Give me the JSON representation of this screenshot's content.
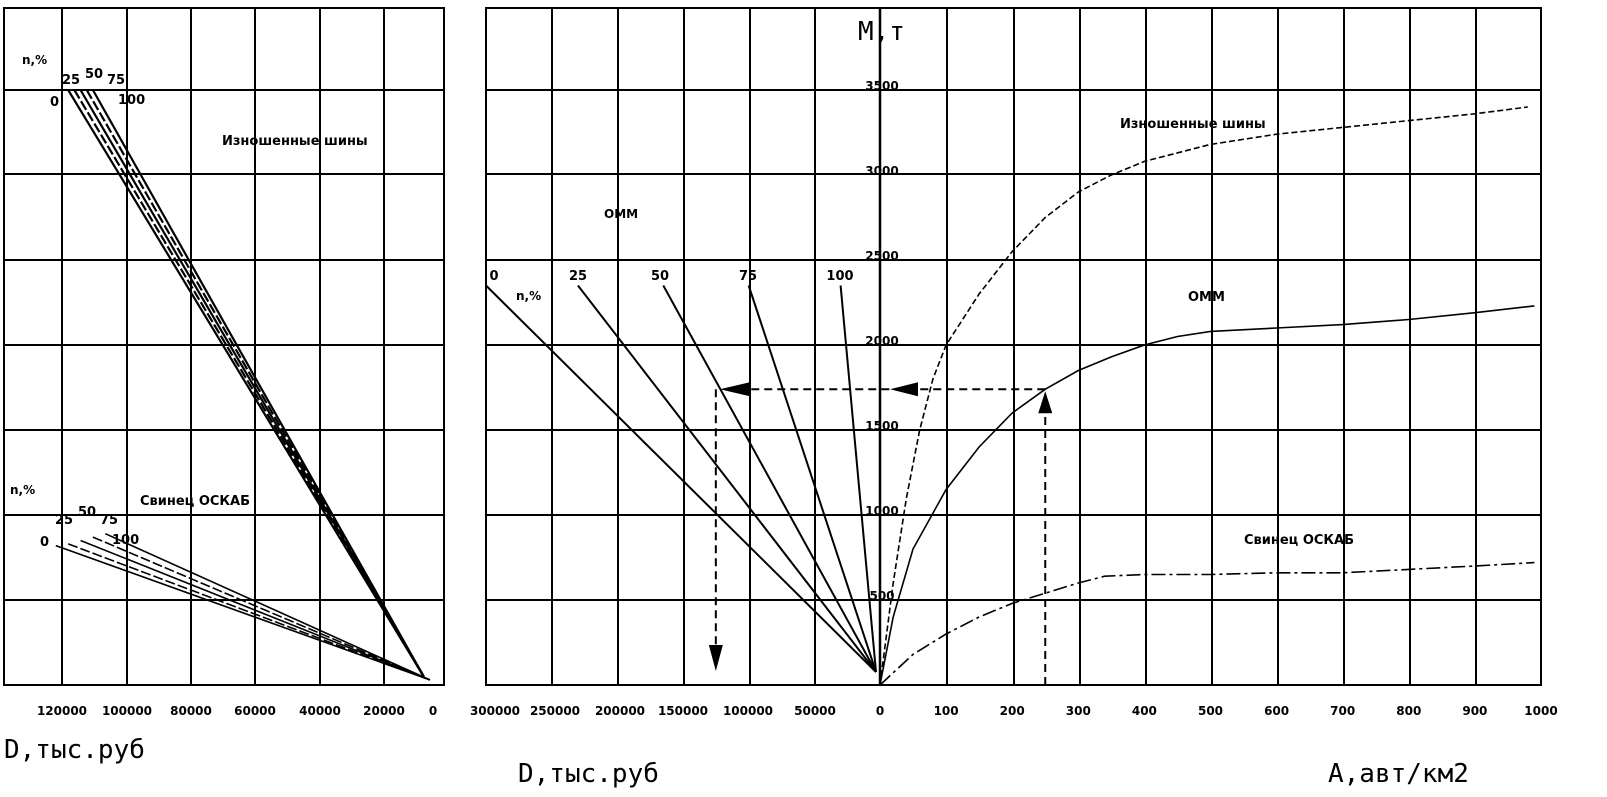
{
  "chart_data": [
    {
      "type": "line",
      "panel": "left",
      "xlabel": "D,тыс.руб",
      "x_ticks": [
        "120000",
        "100000",
        "80000",
        "60000",
        "40000",
        "20000",
        "0"
      ],
      "groups": [
        {
          "name": "Изношенные шины",
          "n_label": "n,%",
          "n_values": [
            "0",
            "25",
            "50",
            "75",
            "100"
          ],
          "lines": [
            {
              "n": "0",
              "x": [
                118000,
                3000
              ],
              "y": [
                3500,
                50
              ]
            },
            {
              "n": "25",
              "x": [
                116000,
                3000
              ],
              "y": [
                3500,
                50
              ]
            },
            {
              "n": "50",
              "x": [
                114000,
                3000
              ],
              "y": [
                3500,
                50
              ]
            },
            {
              "n": "75",
              "x": [
                112000,
                3000
              ],
              "y": [
                3500,
                50
              ]
            },
            {
              "n": "100",
              "x": [
                110000,
                3000
              ],
              "y": [
                3500,
                50
              ]
            }
          ]
        },
        {
          "name": "Свинец ОСКАБ",
          "n_label": "n,%",
          "n_values": [
            "0",
            "25",
            "50",
            "75",
            "100"
          ],
          "lines": [
            {
              "n": "0",
              "x": [
                122000,
                1000
              ],
              "y": [
                820,
                30
              ]
            },
            {
              "n": "25",
              "x": [
                118000,
                1000
              ],
              "y": [
                830,
                30
              ]
            },
            {
              "n": "50",
              "x": [
                114000,
                1000
              ],
              "y": [
                850,
                30
              ]
            },
            {
              "n": "75",
              "x": [
                110000,
                1000
              ],
              "y": [
                870,
                30
              ]
            },
            {
              "n": "100",
              "x": [
                106000,
                1000
              ],
              "y": [
                890,
                30
              ]
            }
          ]
        }
      ]
    },
    {
      "type": "line",
      "panel": "right",
      "ylabel": "М,т",
      "y_ticks": [
        "3500",
        "3000",
        "2500",
        "2000",
        "1500",
        "1000",
        "500"
      ],
      "y_tick_values": [
        3500,
        3000,
        2500,
        2000,
        1500,
        1000,
        500
      ],
      "xlabel_left": "D,тыс.руб",
      "xlabel_right": "А,авт/км2",
      "x_ticks_left": [
        "300000",
        "250000",
        "200000",
        "150000",
        "100000",
        "50000",
        "0"
      ],
      "x_ticks_right": [
        "100",
        "200",
        "300",
        "400",
        "500",
        "600",
        "700",
        "800",
        "900",
        "1000"
      ],
      "n_label": "n,%",
      "cost_lines": [
        {
          "n": "0",
          "D_at_2350": 300000
        },
        {
          "n": "25",
          "D_at_2350": 230000
        },
        {
          "n": "50",
          "D_at_2350": 165000
        },
        {
          "n": "75",
          "D_at_2350": 100000
        },
        {
          "n": "100",
          "D_at_2350": 30000
        }
      ],
      "series": [
        {
          "name": "Изношенные шины",
          "style": "dashed",
          "x": [
            0,
            20,
            40,
            60,
            80,
            100,
            150,
            200,
            250,
            300,
            350,
            400,
            500,
            600,
            700,
            800,
            900,
            980
          ],
          "y": [
            0,
            600,
            1100,
            1500,
            1800,
            2000,
            2300,
            2550,
            2750,
            2900,
            3000,
            3080,
            3180,
            3240,
            3280,
            3320,
            3360,
            3400
          ]
        },
        {
          "name": "ОММ",
          "style": "solid",
          "x": [
            0,
            20,
            50,
            100,
            150,
            200,
            250,
            300,
            350,
            400,
            450,
            500,
            600,
            700,
            800,
            900,
            990
          ],
          "y": [
            0,
            400,
            800,
            1150,
            1400,
            1600,
            1740,
            1850,
            1930,
            2000,
            2050,
            2080,
            2100,
            2120,
            2150,
            2190,
            2230
          ]
        },
        {
          "name": "Свинец ОСКАБ",
          "style": "dashdot",
          "x": [
            0,
            50,
            100,
            150,
            200,
            250,
            300,
            340,
            400,
            500,
            600,
            700,
            800,
            900,
            990
          ],
          "y": [
            0,
            180,
            300,
            400,
            480,
            540,
            600,
            640,
            650,
            650,
            660,
            660,
            680,
            700,
            720
          ]
        }
      ],
      "guide": {
        "A": 250,
        "M": 1740,
        "n": "50",
        "D": 125000
      }
    }
  ]
}
